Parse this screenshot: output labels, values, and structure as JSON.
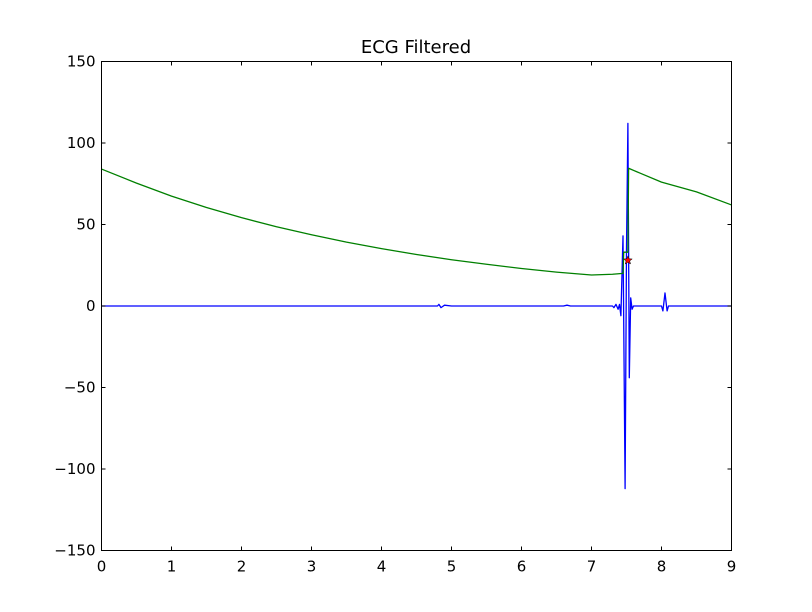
{
  "chart_data": {
    "type": "line",
    "title": "ECG Filtered",
    "xlabel": "",
    "ylabel": "",
    "xlim": [
      0,
      9
    ],
    "ylim": [
      -150,
      150
    ],
    "xticks": [
      0,
      1,
      2,
      3,
      4,
      5,
      6,
      7,
      8,
      9
    ],
    "yticks": [
      -150,
      -100,
      -50,
      0,
      50,
      100,
      150
    ],
    "grid": false,
    "series": [
      {
        "color": "#0000ff",
        "x": [
          0,
          0.5,
          1.0,
          1.5,
          2.0,
          2.5,
          3.0,
          3.5,
          4.0,
          4.5,
          4.8,
          4.82,
          4.85,
          4.9,
          5.0,
          5.5,
          6.0,
          6.6,
          6.65,
          6.7,
          7.0,
          7.1,
          7.3,
          7.32,
          7.35,
          7.38,
          7.4,
          7.42,
          7.45,
          7.48,
          7.5,
          7.52,
          7.54,
          7.56,
          7.58,
          7.6,
          7.65,
          7.7,
          7.8,
          7.9,
          8.0,
          8.02,
          8.05,
          8.08,
          8.1,
          8.15,
          8.2,
          8.4,
          8.6,
          8.8,
          9.0
        ],
        "y": [
          0,
          0,
          0,
          0,
          0,
          0,
          0,
          0,
          0,
          0,
          0,
          1,
          -1,
          0.5,
          0,
          0,
          0,
          0,
          0.5,
          0,
          0,
          0,
          0,
          -1,
          1,
          -2,
          1,
          -6,
          43,
          -112,
          35,
          112,
          -44,
          5,
          -2,
          0,
          0,
          0,
          0,
          0,
          0,
          -3,
          8,
          -3,
          0,
          0,
          0,
          0,
          0,
          0,
          0
        ]
      },
      {
        "color": "#008000",
        "x": [
          0,
          0.5,
          1.0,
          1.5,
          2.0,
          2.5,
          3.0,
          3.5,
          4.0,
          4.5,
          5.0,
          5.5,
          6.0,
          6.5,
          7.0,
          7.3,
          7.45,
          7.46,
          7.52,
          7.53,
          7.7,
          8.0,
          8.5,
          9.0
        ],
        "y": [
          84,
          75.4,
          67.4,
          60.4,
          54.2,
          48.6,
          43.7,
          39.2,
          35.2,
          31.6,
          28.4,
          25.6,
          23,
          20.8,
          19,
          19.5,
          20,
          33,
          33,
          84.5,
          81.4,
          76,
          70,
          62
        ]
      }
    ],
    "markers": [
      {
        "color": "#ff0000",
        "shape": "star",
        "x": 7.52,
        "y": 28
      }
    ]
  }
}
